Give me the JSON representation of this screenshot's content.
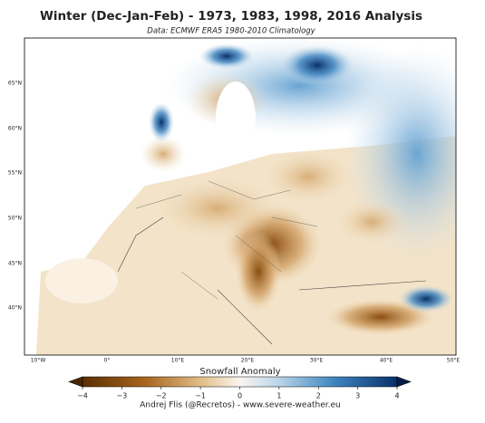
{
  "title": "Winter (Dec-Jan-Feb) - 1973, 1983, 1998, 2016 Analysis",
  "subtitle": "Data: ECMWF ERA5   1980-2010 Climatology",
  "map": {
    "lat_labels": [
      "65°N",
      "60°N",
      "55°N",
      "50°N",
      "45°N",
      "40°N"
    ],
    "lon_labels": [
      "10°W",
      "0°",
      "10°E",
      "20°E",
      "30°E",
      "40°E",
      "50°E"
    ]
  },
  "colorbar": {
    "label": "Snowfall Anomaly",
    "lim": [
      -4,
      4
    ],
    "ticks": [
      {
        "value": -4,
        "label": "−4"
      },
      {
        "value": -3,
        "label": "−3"
      },
      {
        "value": -2,
        "label": "−2"
      },
      {
        "value": -1,
        "label": "−1"
      },
      0,
      1,
      2,
      3,
      4
    ]
  },
  "credit": "Andrej Flis (@Recretos) - www.severe-weather.eu"
}
